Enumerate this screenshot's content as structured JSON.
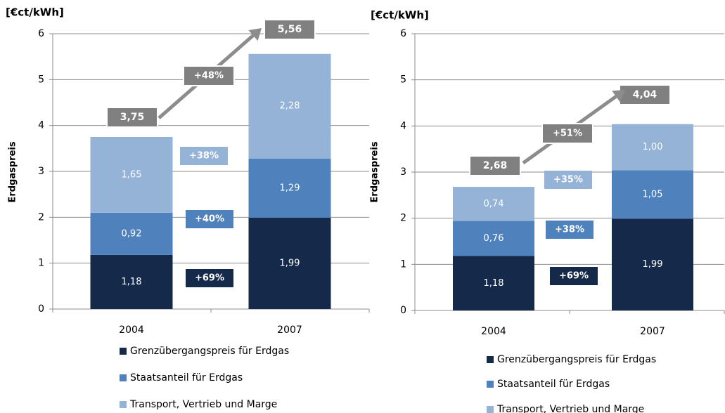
{
  "chart_data": [
    {
      "type": "stacked_bar",
      "unit_label": "[€ct/kWh]",
      "ylabel": "Erdgaspreis",
      "categories": [
        "2004",
        "2007"
      ],
      "series": [
        {
          "name": "Grenzübergangspreis für Erdgas",
          "color": "#15294b",
          "values": [
            1.18,
            1.99
          ],
          "value_labels": [
            "1,18",
            "1,99"
          ],
          "change_label": "+69%"
        },
        {
          "name": "Staatsanteil  für Erdgas",
          "color": "#4f81bd",
          "values": [
            0.92,
            1.29
          ],
          "value_labels": [
            "0,92",
            "1,29"
          ],
          "change_label": "+40%"
        },
        {
          "name": "Transport, Vertrieb und Marge",
          "color": "#95b3d7",
          "values": [
            1.65,
            2.28
          ],
          "value_labels": [
            "1,65",
            "2,28"
          ],
          "change_label": "+38%"
        }
      ],
      "total_labels": [
        "3,75",
        "5,56"
      ],
      "total_change_label": "+48%",
      "ylim": [
        0,
        6
      ],
      "yticks": [
        0,
        1,
        2,
        3,
        4,
        5,
        6
      ],
      "grid": true
    },
    {
      "type": "stacked_bar",
      "unit_label": "[€ct/kWh]",
      "ylabel": "Erdgaspreis",
      "categories": [
        "2004",
        "2007"
      ],
      "series": [
        {
          "name": "Grenzübergangspreis für Erdgas",
          "color": "#15294b",
          "values": [
            1.18,
            1.99
          ],
          "value_labels": [
            "1,18",
            "1,99"
          ],
          "change_label": "+69%"
        },
        {
          "name": "Staatsanteil  für Erdgas",
          "color": "#4f81bd",
          "values": [
            0.76,
            1.05
          ],
          "value_labels": [
            "0,76",
            "1,05"
          ],
          "change_label": "+38%"
        },
        {
          "name": "Transport, Vertrieb und Marge",
          "color": "#95b3d7",
          "values": [
            0.74,
            1.0
          ],
          "value_labels": [
            "0,74",
            "1,00"
          ],
          "change_label": "+35%"
        }
      ],
      "total_labels": [
        "2,68",
        "4,04"
      ],
      "total_change_label": "+51%",
      "ylim": [
        0,
        6
      ],
      "yticks": [
        0,
        1,
        2,
        3,
        4,
        5,
        6
      ],
      "grid": true
    }
  ]
}
